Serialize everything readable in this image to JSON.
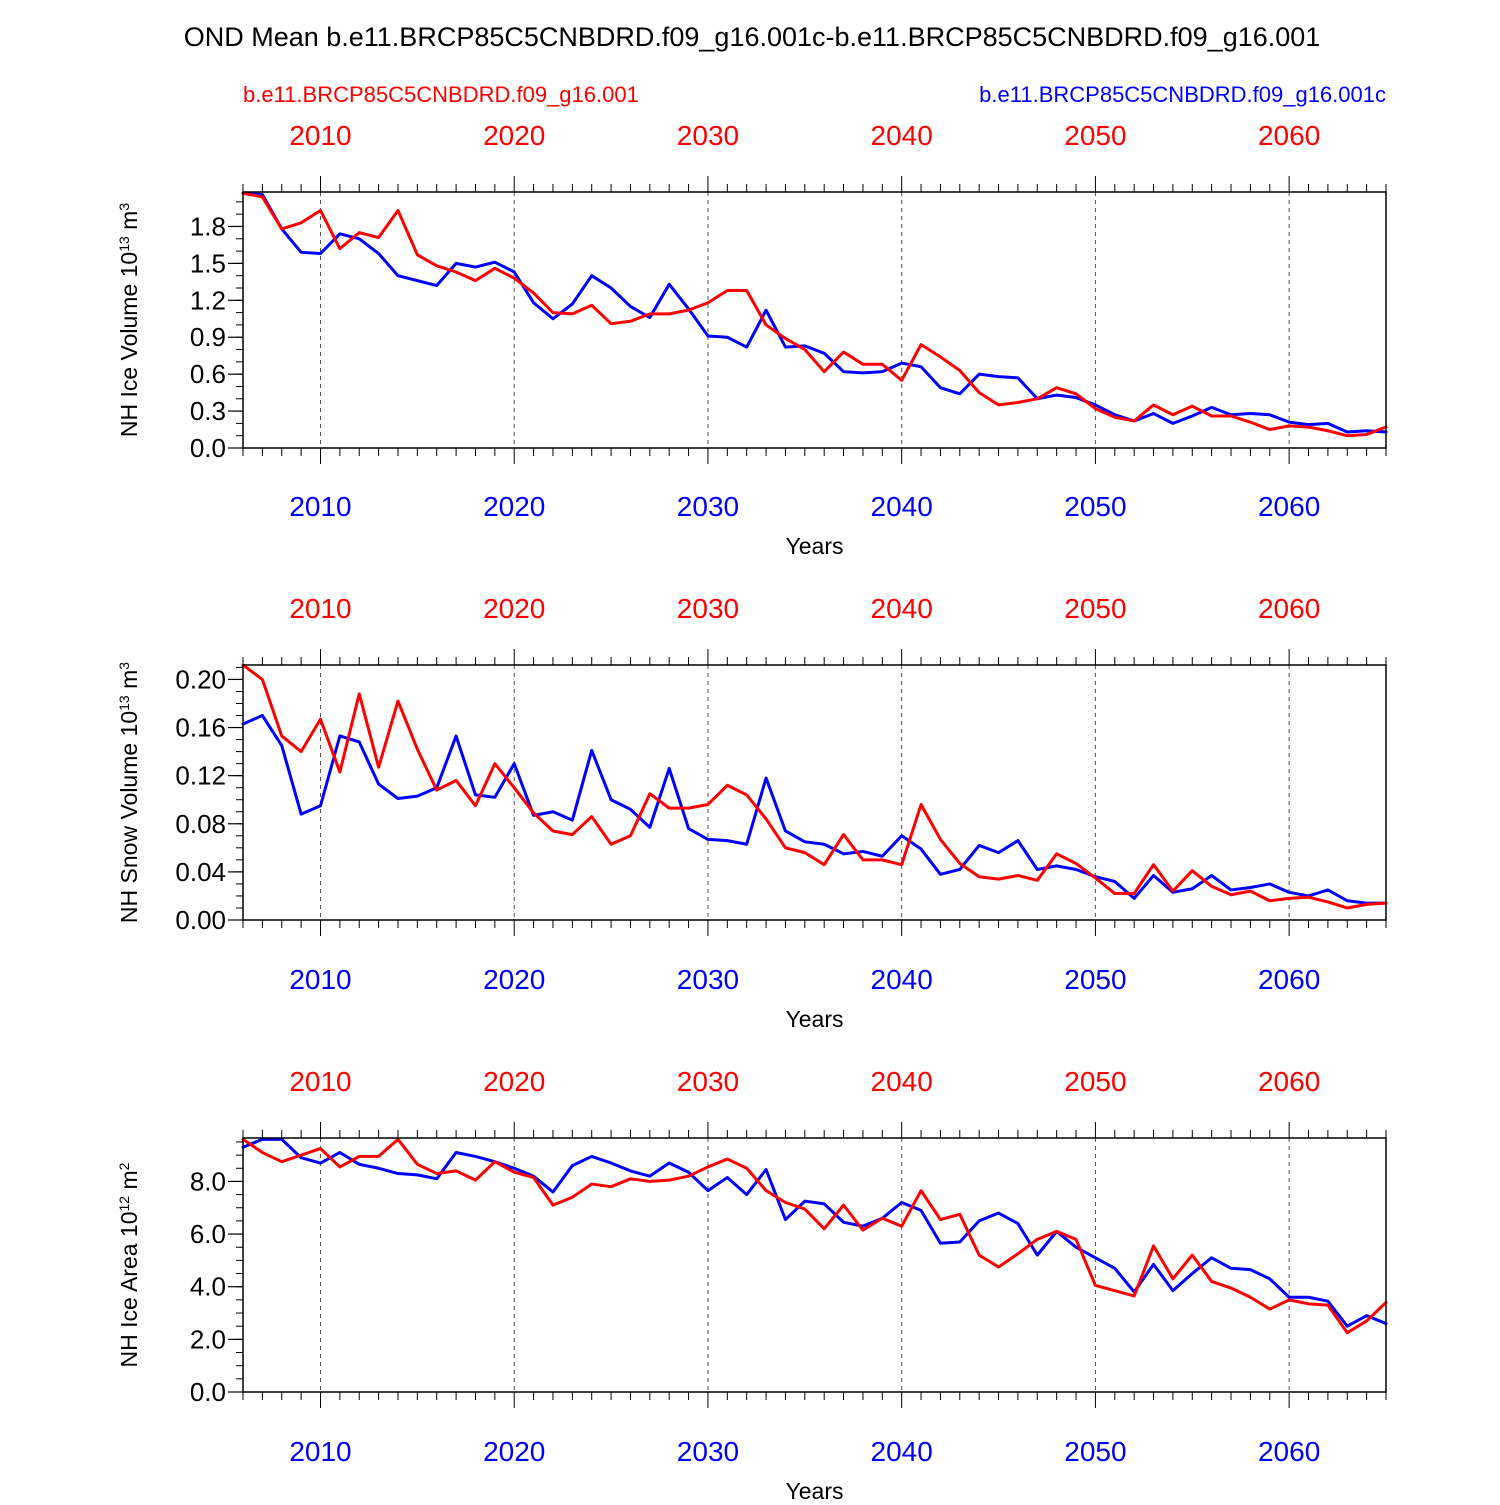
{
  "title": "OND Mean b.e11.BRCP85C5CNBDRD.f09_g16.001c-b.e11.BRCP85C5CNBDRD.f09_g16.001",
  "legend": {
    "red_label": "b.e11.BRCP85C5CNBDRD.f09_g16.001",
    "blue_label": "b.e11.BRCP85C5CNBDRD.f09_g16.001c"
  },
  "colors": {
    "red": "#ff0000",
    "blue": "#0000ff",
    "axis": "#000000",
    "grid": "#555555"
  },
  "chart_data": [
    {
      "type": "line",
      "ylabel": "NH Ice Volume 10",
      "ylabel_exp": "13",
      "ylabel_unit": " m",
      "ylabel_unit_exp": "3",
      "xlabel": "Years",
      "xlim": [
        2006,
        2065
      ],
      "ylim": [
        0,
        2.08
      ],
      "yticks": [
        "0.0",
        "0.3",
        "0.6",
        "0.9",
        "1.2",
        "1.5",
        "1.8"
      ],
      "ytick_values": [
        0,
        0.3,
        0.6,
        0.9,
        1.2,
        1.5,
        1.8
      ],
      "yminor_step": 0.1,
      "xtick_labels": [
        "2010",
        "2020",
        "2030",
        "2040",
        "2050",
        "2060"
      ],
      "xtick_values": [
        2010,
        2020,
        2030,
        2040,
        2050,
        2060
      ],
      "x": [
        2006,
        2007,
        2008,
        2009,
        2010,
        2011,
        2012,
        2013,
        2014,
        2015,
        2016,
        2017,
        2018,
        2019,
        2020,
        2021,
        2022,
        2023,
        2024,
        2025,
        2026,
        2027,
        2028,
        2029,
        2030,
        2031,
        2032,
        2033,
        2034,
        2035,
        2036,
        2037,
        2038,
        2039,
        2040,
        2041,
        2042,
        2043,
        2044,
        2045,
        2046,
        2047,
        2048,
        2049,
        2050,
        2051,
        2052,
        2053,
        2054,
        2055,
        2056,
        2057,
        2058,
        2059,
        2060,
        2061,
        2062,
        2063,
        2064,
        2065
      ],
      "series": [
        {
          "name": "b.e11.BRCP85C5CNBDRD.f09_g16.001c",
          "color": "blue",
          "values": [
            2.07,
            2.06,
            1.78,
            1.59,
            1.58,
            1.74,
            1.7,
            1.58,
            1.4,
            1.36,
            1.32,
            1.5,
            1.47,
            1.51,
            1.43,
            1.18,
            1.05,
            1.17,
            1.4,
            1.3,
            1.15,
            1.06,
            1.33,
            1.13,
            0.91,
            0.9,
            0.82,
            1.12,
            0.82,
            0.83,
            0.77,
            0.62,
            0.61,
            0.62,
            0.69,
            0.66,
            0.49,
            0.44,
            0.6,
            0.58,
            0.57,
            0.4,
            0.43,
            0.41,
            0.35,
            0.27,
            0.22,
            0.28,
            0.2,
            0.26,
            0.33,
            0.27,
            0.28,
            0.27,
            0.21,
            0.19,
            0.2,
            0.13,
            0.14,
            0.13
          ]
        },
        {
          "name": "b.e11.BRCP85C5CNBDRD.f09_g16.001",
          "color": "red",
          "values": [
            2.07,
            2.04,
            1.78,
            1.83,
            1.93,
            1.62,
            1.75,
            1.71,
            1.93,
            1.57,
            1.48,
            1.43,
            1.36,
            1.46,
            1.38,
            1.26,
            1.1,
            1.09,
            1.16,
            1.01,
            1.03,
            1.09,
            1.09,
            1.12,
            1.18,
            1.28,
            1.28,
            1.0,
            0.89,
            0.8,
            0.62,
            0.78,
            0.68,
            0.68,
            0.55,
            0.84,
            0.74,
            0.63,
            0.45,
            0.35,
            0.37,
            0.4,
            0.49,
            0.44,
            0.32,
            0.25,
            0.22,
            0.35,
            0.27,
            0.34,
            0.26,
            0.26,
            0.21,
            0.15,
            0.18,
            0.17,
            0.14,
            0.1,
            0.11,
            0.17
          ]
        }
      ]
    },
    {
      "type": "line",
      "ylabel": "NH Snow Volume 10",
      "ylabel_exp": "13",
      "ylabel_unit": " m",
      "ylabel_unit_exp": "3",
      "xlabel": "Years",
      "xlim": [
        2006,
        2065
      ],
      "ylim": [
        0,
        0.212
      ],
      "yticks": [
        "0.00",
        "0.04",
        "0.08",
        "0.12",
        "0.16",
        "0.20"
      ],
      "ytick_values": [
        0,
        0.04,
        0.08,
        0.12,
        0.16,
        0.2
      ],
      "yminor_step": 0.01,
      "xtick_labels": [
        "2010",
        "2020",
        "2030",
        "2040",
        "2050",
        "2060"
      ],
      "xtick_values": [
        2010,
        2020,
        2030,
        2040,
        2050,
        2060
      ],
      "x": [
        2006,
        2007,
        2008,
        2009,
        2010,
        2011,
        2012,
        2013,
        2014,
        2015,
        2016,
        2017,
        2018,
        2019,
        2020,
        2021,
        2022,
        2023,
        2024,
        2025,
        2026,
        2027,
        2028,
        2029,
        2030,
        2031,
        2032,
        2033,
        2034,
        2035,
        2036,
        2037,
        2038,
        2039,
        2040,
        2041,
        2042,
        2043,
        2044,
        2045,
        2046,
        2047,
        2048,
        2049,
        2050,
        2051,
        2052,
        2053,
        2054,
        2055,
        2056,
        2057,
        2058,
        2059,
        2060,
        2061,
        2062,
        2063,
        2064,
        2065
      ],
      "series": [
        {
          "name": "b.e11.BRCP85C5CNBDRD.f09_g16.001c",
          "color": "blue",
          "values": [
            0.163,
            0.17,
            0.145,
            0.088,
            0.095,
            0.153,
            0.148,
            0.113,
            0.101,
            0.103,
            0.11,
            0.153,
            0.104,
            0.102,
            0.13,
            0.087,
            0.09,
            0.083,
            0.141,
            0.1,
            0.092,
            0.077,
            0.126,
            0.076,
            0.067,
            0.066,
            0.063,
            0.118,
            0.074,
            0.065,
            0.063,
            0.055,
            0.057,
            0.053,
            0.07,
            0.059,
            0.038,
            0.042,
            0.062,
            0.056,
            0.066,
            0.042,
            0.045,
            0.042,
            0.036,
            0.032,
            0.018,
            0.037,
            0.023,
            0.026,
            0.037,
            0.025,
            0.027,
            0.03,
            0.023,
            0.02,
            0.025,
            0.016,
            0.014,
            0.014
          ]
        },
        {
          "name": "b.e11.BRCP85C5CNBDRD.f09_g16.001",
          "color": "red",
          "values": [
            0.212,
            0.2,
            0.153,
            0.14,
            0.167,
            0.123,
            0.188,
            0.127,
            0.182,
            0.142,
            0.108,
            0.116,
            0.095,
            0.13,
            0.11,
            0.089,
            0.074,
            0.071,
            0.086,
            0.063,
            0.07,
            0.105,
            0.093,
            0.093,
            0.096,
            0.112,
            0.104,
            0.084,
            0.06,
            0.056,
            0.046,
            0.071,
            0.05,
            0.05,
            0.046,
            0.096,
            0.067,
            0.047,
            0.036,
            0.034,
            0.037,
            0.033,
            0.055,
            0.047,
            0.035,
            0.022,
            0.022,
            0.046,
            0.024,
            0.041,
            0.028,
            0.021,
            0.024,
            0.016,
            0.018,
            0.019,
            0.015,
            0.01,
            0.013,
            0.014
          ]
        }
      ]
    },
    {
      "type": "line",
      "ylabel": "NH Ice Area 10",
      "ylabel_exp": "12",
      "ylabel_unit": " m",
      "ylabel_unit_exp": "2",
      "xlabel": "Years",
      "xlim": [
        2006,
        2065
      ],
      "ylim": [
        0,
        9.65
      ],
      "yticks": [
        "0.0",
        "2.0",
        "4.0",
        "6.0",
        "8.0"
      ],
      "ytick_values": [
        0,
        2,
        4,
        6,
        8
      ],
      "yminor_step": 0.5,
      "xtick_labels": [
        "2010",
        "2020",
        "2030",
        "2040",
        "2050",
        "2060"
      ],
      "xtick_values": [
        2010,
        2020,
        2030,
        2040,
        2050,
        2060
      ],
      "x": [
        2006,
        2007,
        2008,
        2009,
        2010,
        2011,
        2012,
        2013,
        2014,
        2015,
        2016,
        2017,
        2018,
        2019,
        2020,
        2021,
        2022,
        2023,
        2024,
        2025,
        2026,
        2027,
        2028,
        2029,
        2030,
        2031,
        2032,
        2033,
        2034,
        2035,
        2036,
        2037,
        2038,
        2039,
        2040,
        2041,
        2042,
        2043,
        2044,
        2045,
        2046,
        2047,
        2048,
        2049,
        2050,
        2051,
        2052,
        2053,
        2054,
        2055,
        2056,
        2057,
        2058,
        2059,
        2060,
        2061,
        2062,
        2063,
        2064,
        2065
      ],
      "series": [
        {
          "name": "b.e11.BRCP85C5CNBDRD.f09_g16.001c",
          "color": "blue",
          "values": [
            9.3,
            9.6,
            9.6,
            8.9,
            8.7,
            9.1,
            8.65,
            8.5,
            8.3,
            8.25,
            8.1,
            9.1,
            8.95,
            8.75,
            8.5,
            8.2,
            7.6,
            8.6,
            8.95,
            8.7,
            8.4,
            8.2,
            8.7,
            8.35,
            7.65,
            8.15,
            7.5,
            8.45,
            6.55,
            7.25,
            7.15,
            6.45,
            6.3,
            6.6,
            7.2,
            6.9,
            5.65,
            5.7,
            6.5,
            6.8,
            6.4,
            5.2,
            6.1,
            5.5,
            5.1,
            4.7,
            3.8,
            4.85,
            3.85,
            4.5,
            5.1,
            4.7,
            4.65,
            4.3,
            3.6,
            3.6,
            3.45,
            2.5,
            2.9,
            2.6
          ]
        },
        {
          "name": "b.e11.BRCP85C5CNBDRD.f09_g16.001",
          "color": "red",
          "values": [
            9.6,
            9.1,
            8.75,
            9.0,
            9.25,
            8.55,
            8.95,
            8.95,
            9.6,
            8.65,
            8.3,
            8.4,
            8.05,
            8.75,
            8.35,
            8.15,
            7.1,
            7.4,
            7.9,
            7.8,
            8.1,
            8.0,
            8.05,
            8.2,
            8.55,
            8.85,
            8.5,
            7.65,
            7.2,
            6.95,
            6.2,
            7.1,
            6.15,
            6.6,
            6.3,
            7.65,
            6.55,
            6.75,
            5.2,
            4.75,
            5.25,
            5.8,
            6.1,
            5.8,
            4.05,
            3.85,
            3.65,
            5.55,
            4.3,
            5.2,
            4.2,
            3.95,
            3.6,
            3.15,
            3.5,
            3.35,
            3.3,
            2.25,
            2.7,
            3.4
          ]
        }
      ]
    }
  ]
}
